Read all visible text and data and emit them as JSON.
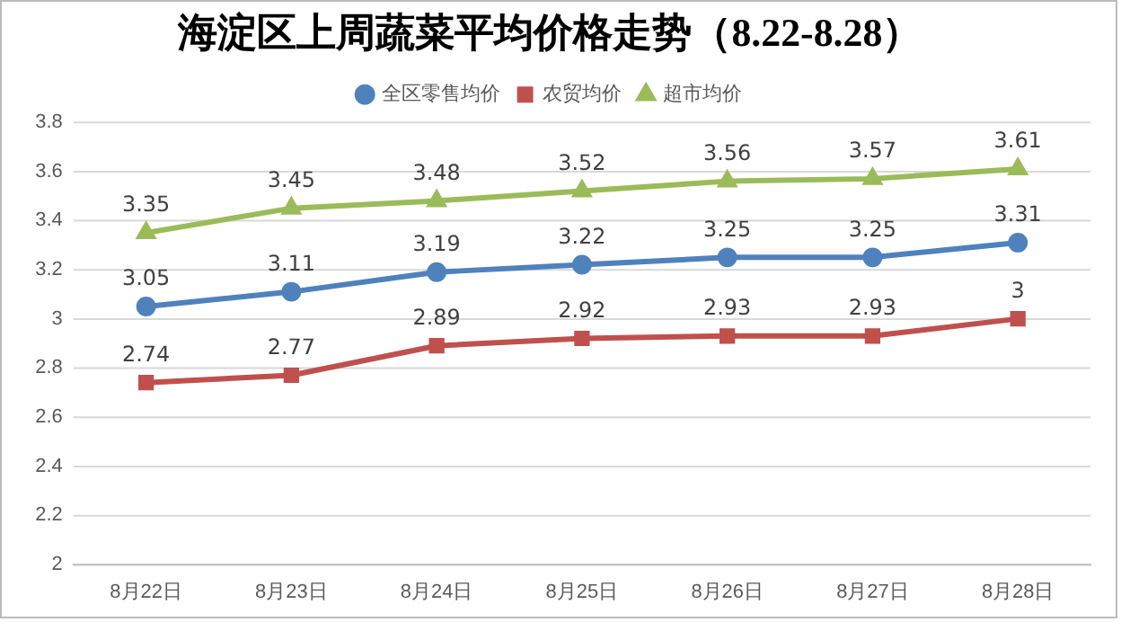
{
  "chart_data": {
    "type": "line",
    "title": "海淀区上周蔬菜平均价格走势（8.22-8.28）",
    "categories": [
      "8月22日",
      "8月23日",
      "8月24日",
      "8月25日",
      "8月26日",
      "8月27日",
      "8月28日"
    ],
    "series": [
      {
        "name": "全区零售均价",
        "color": "#4f81bd",
        "marker": "circle",
        "values": [
          3.05,
          3.11,
          3.19,
          3.22,
          3.25,
          3.25,
          3.31
        ]
      },
      {
        "name": "农贸均价",
        "color": "#c0504d",
        "marker": "square",
        "values": [
          2.74,
          2.77,
          2.89,
          2.92,
          2.93,
          2.93,
          3
        ]
      },
      {
        "name": "超市均价",
        "color": "#9bbb59",
        "marker": "triangle",
        "values": [
          3.35,
          3.45,
          3.48,
          3.52,
          3.56,
          3.57,
          3.61
        ]
      }
    ],
    "ylim": [
      2,
      3.8
    ],
    "yticks": [
      2,
      2.2,
      2.4,
      2.6,
      2.8,
      3,
      3.2,
      3.4,
      3.6,
      3.8
    ],
    "grid": "y",
    "legend": "top",
    "data_labels": true,
    "line_style": "solid"
  }
}
